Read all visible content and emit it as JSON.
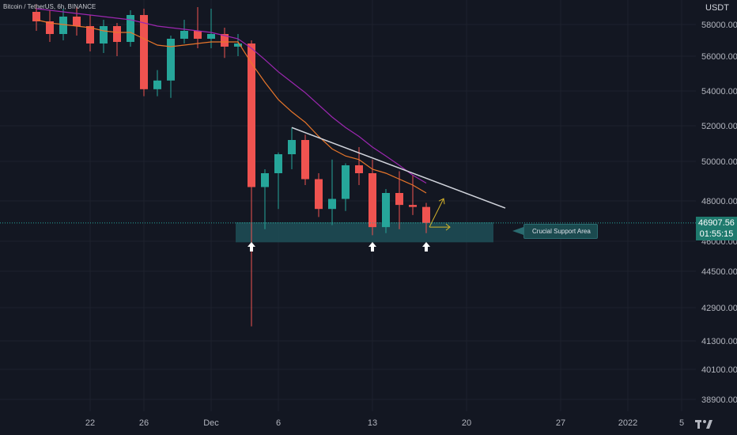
{
  "header": {
    "title": "Bitcoin / TetherUS, 6h, BINANCE"
  },
  "axis": {
    "unit": "USDT"
  },
  "current_price": {
    "value": "46907.56",
    "countdown": "01:55:15"
  },
  "annotation": {
    "label": "Crucial Support Area"
  },
  "colors": {
    "background": "#131722",
    "bull": "#26a69a",
    "bear": "#ef5350",
    "ma_fast": "#e8762b",
    "ma_slow": "#9c27b0",
    "trendline": "#d1d4dc",
    "support_zone": "#1f4f57",
    "arrow_yellow": "#d4b22a"
  },
  "chart_data": {
    "type": "candlestick",
    "symbol": "Bitcoin / TetherUS",
    "interval": "6h",
    "exchange": "BINANCE",
    "y_tick_labels": [
      "58000.00",
      "56000.00",
      "54000.00",
      "52000.00",
      "50000.00",
      "48000.00",
      "46000.00",
      "44500.00",
      "42900.00",
      "41300.00",
      "40100.00",
      "38900.00"
    ],
    "y_ticks": [
      58000,
      56000,
      54000,
      52000,
      50000,
      48000,
      46000,
      44500,
      42900,
      41300,
      40100,
      38900
    ],
    "x_tick_labels": [
      "22",
      "26",
      "Dec",
      "6",
      "13",
      "20",
      "27",
      "2022",
      "5"
    ],
    "x_ticks": [
      "2021-11-22",
      "2021-11-26",
      "2021-12-01",
      "2021-12-06",
      "2021-12-13",
      "2021-12-20",
      "2021-12-27",
      "2022-01-01",
      "2022-01-05"
    ],
    "candles": [
      {
        "t": "2021-11-18",
        "o": 58800,
        "h": 59300,
        "l": 57600,
        "c": 58200
      },
      {
        "t": "2021-11-19",
        "o": 58200,
        "h": 58900,
        "l": 56900,
        "c": 57400
      },
      {
        "t": "2021-11-20",
        "o": 57400,
        "h": 59000,
        "l": 57000,
        "c": 58500
      },
      {
        "t": "2021-11-21",
        "o": 58500,
        "h": 59100,
        "l": 57300,
        "c": 57900
      },
      {
        "t": "2021-11-22",
        "o": 57900,
        "h": 58600,
        "l": 56300,
        "c": 56800
      },
      {
        "t": "2021-11-23",
        "o": 56800,
        "h": 58300,
        "l": 56200,
        "c": 57900
      },
      {
        "t": "2021-11-24",
        "o": 57900,
        "h": 58100,
        "l": 56000,
        "c": 56900
      },
      {
        "t": "2021-11-25",
        "o": 56900,
        "h": 58900,
        "l": 56600,
        "c": 58600
      },
      {
        "t": "2021-11-26",
        "o": 58600,
        "h": 59000,
        "l": 53700,
        "c": 54100
      },
      {
        "t": "2021-11-27",
        "o": 54100,
        "h": 55200,
        "l": 53700,
        "c": 54600
      },
      {
        "t": "2021-11-28",
        "o": 54600,
        "h": 57300,
        "l": 53600,
        "c": 57100
      },
      {
        "t": "2021-11-29",
        "o": 57100,
        "h": 58300,
        "l": 56800,
        "c": 57600
      },
      {
        "t": "2021-11-30",
        "o": 57600,
        "h": 59100,
        "l": 56500,
        "c": 57100
      },
      {
        "t": "2021-12-01",
        "o": 57100,
        "h": 59000,
        "l": 56500,
        "c": 57400
      },
      {
        "t": "2021-12-02",
        "o": 57400,
        "h": 57800,
        "l": 55900,
        "c": 56600
      },
      {
        "t": "2021-12-03",
        "o": 56600,
        "h": 57400,
        "l": 56000,
        "c": 56800
      },
      {
        "t": "2021-12-04",
        "o": 56800,
        "h": 57000,
        "l": 42000,
        "c": 48700
      },
      {
        "t": "2021-12-05",
        "o": 48700,
        "h": 49600,
        "l": 46600,
        "c": 49400
      },
      {
        "t": "2021-12-06",
        "o": 49400,
        "h": 50500,
        "l": 47600,
        "c": 50400
      },
      {
        "t": "2021-12-07",
        "o": 50400,
        "h": 51900,
        "l": 49600,
        "c": 51200
      },
      {
        "t": "2021-12-08",
        "o": 51200,
        "h": 51500,
        "l": 48800,
        "c": 49100
      },
      {
        "t": "2021-12-09",
        "o": 49100,
        "h": 49400,
        "l": 47200,
        "c": 47600
      },
      {
        "t": "2021-12-10",
        "o": 47600,
        "h": 50100,
        "l": 46800,
        "c": 48100
      },
      {
        "t": "2021-12-11",
        "o": 48100,
        "h": 49900,
        "l": 47500,
        "c": 49800
      },
      {
        "t": "2021-12-12",
        "o": 49800,
        "h": 50800,
        "l": 48800,
        "c": 49400
      },
      {
        "t": "2021-12-13",
        "o": 49400,
        "h": 50100,
        "l": 46300,
        "c": 46700
      },
      {
        "t": "2021-12-14",
        "o": 46700,
        "h": 48600,
        "l": 46400,
        "c": 48400
      },
      {
        "t": "2021-12-15",
        "o": 48400,
        "h": 49500,
        "l": 46600,
        "c": 47800
      },
      {
        "t": "2021-12-16",
        "o": 47800,
        "h": 49300,
        "l": 47300,
        "c": 47700
      },
      {
        "t": "2021-12-17",
        "o": 47700,
        "h": 47900,
        "l": 46400,
        "c": 46908
      }
    ],
    "moving_averages": [
      {
        "color": "#e8762b",
        "values": [
          58300,
          58100,
          58000,
          57900,
          57800,
          57600,
          57500,
          57500,
          57100,
          56700,
          56600,
          56700,
          56800,
          56900,
          56900,
          56900,
          55600,
          54500,
          53500,
          52800,
          52200,
          51400,
          50700,
          50300,
          50100,
          49600,
          49400,
          49100,
          48800,
          48400
        ]
      },
      {
        "color": "#9c27b0",
        "values": [
          59000,
          58900,
          58800,
          58700,
          58600,
          58500,
          58400,
          58300,
          58100,
          57900,
          57800,
          57700,
          57600,
          57500,
          57300,
          57100,
          56500,
          55800,
          55100,
          54500,
          53900,
          53200,
          52500,
          51900,
          51400,
          50800,
          50300,
          49800,
          49300,
          48900
        ]
      }
    ],
    "trendline": {
      "from": {
        "t": "2021-12-07",
        "price": 51900
      },
      "to": {
        "t": "2021-12-22",
        "price": 47800
      }
    },
    "support_zone": {
      "from": "2021-12-04",
      "to": "2021-12-22",
      "low": 46300,
      "high": 46900
    },
    "support_markers": [
      "2021-12-04",
      "2021-12-13",
      "2021-12-17"
    ],
    "projection_arrows": [
      {
        "direction": "up",
        "t": "2021-12-17"
      },
      {
        "direction": "right",
        "t": "2021-12-17"
      }
    ],
    "current_price": 46907.56
  }
}
